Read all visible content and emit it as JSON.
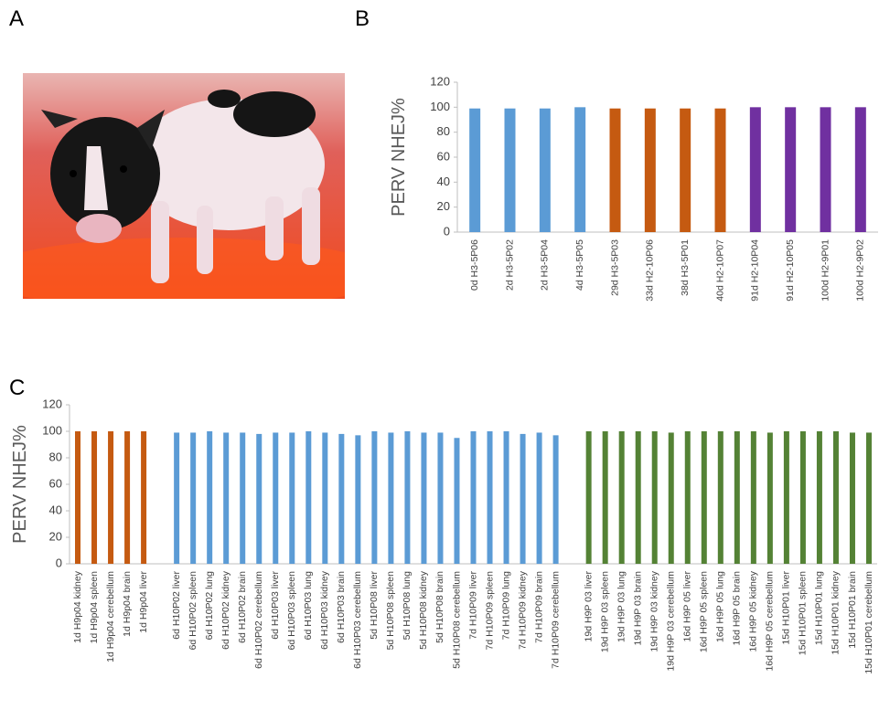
{
  "panel_a": {
    "label": "A"
  },
  "chart_data": [
    {
      "type": "bar",
      "panel_label": "B",
      "y_label": "PERV NHEJ%",
      "categories": [
        "0d H3-5P06",
        "2d H3-5P02",
        "2d H3-5P04",
        "4d H3-5P05",
        "29d H3-5P03",
        "33d H2-10P06",
        "38d H3-5P01",
        "40d H2-10P07",
        "91d H2-10P04",
        "91d H2-10P05",
        "100d H2-9P01",
        "100d H2-9P02"
      ],
      "series": [
        {
          "color": "#5b9bd5",
          "values": [
            99,
            99,
            99,
            100,
            null,
            null,
            null,
            null,
            null,
            null,
            null,
            null
          ]
        },
        {
          "color": "#c55a11",
          "values": [
            null,
            null,
            null,
            null,
            99,
            99,
            99,
            99,
            null,
            null,
            null,
            null
          ]
        },
        {
          "color": "#7030a0",
          "values": [
            null,
            null,
            null,
            null,
            null,
            null,
            null,
            null,
            100,
            100,
            100,
            100
          ]
        }
      ],
      "ylim": [
        0,
        120
      ],
      "yticks": [
        0,
        20,
        40,
        60,
        80,
        100,
        120
      ]
    },
    {
      "type": "bar",
      "panel_label": "C",
      "y_label": "PERV NHEJ%",
      "categories": [
        "1d H9p04 kidney",
        "1d H9p04 spleen",
        "1d H9p04 cerebellum",
        "1d H9p04 brain",
        "1d H9p04 liver",
        null,
        "6d H10P02 liver",
        "6d H10P02 spleen",
        "6d H10P02 lung",
        "6d H10P02 kidney",
        "6d H10P02 brain",
        "6d H10P02 cerebellum",
        "6d H10P03 liver",
        "6d H10P03 spleen",
        "6d H10P03 lung",
        "6d H10P03 kidney",
        "6d H10P03 brain",
        "6d H10P03 cerebellum",
        "5d H10P08 liver",
        "5d H10P08 spleen",
        "5d H10P08 lung",
        "5d H10P08 kidney",
        "5d H10P08 brain",
        "5d H10P08 cerebellum",
        "7d H10P09 liver",
        "7d H10P09 spleen",
        "7d H10P09 lung",
        "7d H10P09 kidney",
        "7d H10P09 brain",
        "7d H10P09 cerebellum",
        null,
        "19d H9P 03 liver",
        "19d H9P 03 spleen",
        "19d H9P 03 lung",
        "19d H9P 03 brain",
        "19d H9P 03 kidney",
        "19d H9P 03 cerebellum",
        "16d H9P 05 liver",
        "16d H9P 05 spleen",
        "16d H9P 05 lung",
        "16d H9P 05 brain",
        "16d H9P 05 kidney",
        "16d H9P 05 cerebellum",
        "15d H10P01 liver",
        "15d H10P01 spleen",
        "15d H10P01 lung",
        "15d H10P01 kidney",
        "15d H10P01 brain",
        "15d H10P01 cerebellum"
      ],
      "series": [
        {
          "color": "#c55a11",
          "values": [
            100,
            100,
            100,
            100,
            100,
            null,
            null,
            null,
            null,
            null,
            null,
            null,
            null,
            null,
            null,
            null,
            null,
            null,
            null,
            null,
            null,
            null,
            null,
            null,
            null,
            null,
            null,
            null,
            null,
            null,
            null,
            null,
            null,
            null,
            null,
            null,
            null,
            null,
            null,
            null,
            null,
            null,
            null,
            null,
            null,
            null,
            null,
            null,
            null
          ]
        },
        {
          "color": "#5b9bd5",
          "values": [
            null,
            null,
            null,
            null,
            null,
            null,
            99,
            99,
            100,
            99,
            99,
            98,
            99,
            99,
            100,
            99,
            98,
            97,
            100,
            99,
            100,
            99,
            99,
            95,
            100,
            100,
            100,
            98,
            99,
            97,
            null,
            null,
            null,
            null,
            null,
            null,
            null,
            null,
            null,
            null,
            null,
            null,
            null,
            null,
            null,
            null,
            null,
            null,
            null
          ]
        },
        {
          "color": "#548235",
          "values": [
            null,
            null,
            null,
            null,
            null,
            null,
            null,
            null,
            null,
            null,
            null,
            null,
            null,
            null,
            null,
            null,
            null,
            null,
            null,
            null,
            null,
            null,
            null,
            null,
            null,
            null,
            null,
            null,
            null,
            null,
            null,
            100,
            100,
            100,
            100,
            100,
            99,
            100,
            100,
            100,
            100,
            100,
            99,
            100,
            100,
            100,
            100,
            99,
            99
          ]
        }
      ],
      "ylim": [
        0,
        120
      ],
      "yticks": [
        0,
        20,
        40,
        60,
        80,
        100,
        120
      ]
    }
  ]
}
